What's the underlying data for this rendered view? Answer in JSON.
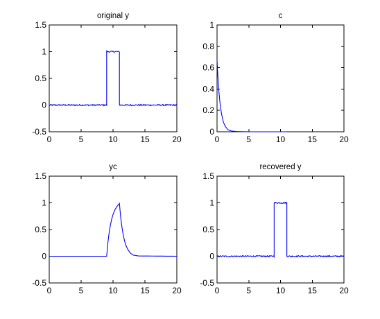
{
  "chart_data": [
    {
      "type": "line",
      "title": "original y",
      "xlabel": "",
      "ylabel": "",
      "xlim": [
        0,
        20
      ],
      "ylim": [
        -0.5,
        1.5
      ],
      "xticks": [
        0,
        5,
        10,
        15,
        20
      ],
      "yticks": [
        -0.5,
        0,
        0.5,
        1,
        1.5
      ],
      "xtick_labels": [
        "0",
        "5",
        "10",
        "15",
        "20"
      ],
      "ytick_labels": [
        "-0.5",
        "0",
        "0.5",
        "1",
        "1.5"
      ],
      "series_color": "#0000ff",
      "noise": 0.012,
      "x": [
        0,
        9.0,
        9.0,
        11.0,
        11.0,
        20
      ],
      "y": [
        0,
        0,
        1,
        1,
        0,
        0
      ]
    },
    {
      "type": "line",
      "title": "c",
      "xlabel": "",
      "ylabel": "",
      "xlim": [
        0,
        20
      ],
      "ylim": [
        0,
        1
      ],
      "xticks": [
        0,
        5,
        10,
        15,
        20
      ],
      "yticks": [
        0,
        0.2,
        0.4,
        0.6,
        0.8,
        1
      ],
      "xtick_labels": [
        "0",
        "5",
        "10",
        "15",
        "20"
      ],
      "ytick_labels": [
        "0",
        "0.2",
        "0.4",
        "0.6",
        "0.8",
        "1"
      ],
      "series_color": "#0000ff",
      "noise": 0,
      "x": [
        0,
        0.1,
        0.2,
        0.3,
        0.5,
        0.7,
        1.0,
        1.3,
        1.7,
        2.2,
        3.0,
        5.0,
        8.0,
        11.0
      ],
      "y": [
        0.67,
        0.55,
        0.45,
        0.37,
        0.25,
        0.17,
        0.09,
        0.05,
        0.02,
        0.008,
        0.002,
        0,
        0,
        0
      ]
    },
    {
      "type": "line",
      "title": "yc",
      "xlabel": "",
      "ylabel": "",
      "xlim": [
        0,
        20
      ],
      "ylim": [
        -0.5,
        1.5
      ],
      "xticks": [
        0,
        5,
        10,
        15,
        20
      ],
      "yticks": [
        -0.5,
        0,
        0.5,
        1,
        1.5
      ],
      "xtick_labels": [
        "0",
        "5",
        "10",
        "15",
        "20"
      ],
      "ytick_labels": [
        "-0.5",
        "0",
        "0.5",
        "1",
        "1.5"
      ],
      "series_color": "#0000ff",
      "noise": 0,
      "x": [
        0,
        9.0,
        9.2,
        9.4,
        9.6,
        9.8,
        10.0,
        10.3,
        10.6,
        11.0,
        11.2,
        11.4,
        11.6,
        11.8,
        12.0,
        12.3,
        12.7,
        13.2,
        14.0,
        20
      ],
      "y": [
        0,
        0,
        0.26,
        0.45,
        0.59,
        0.7,
        0.78,
        0.87,
        0.93,
        0.99,
        0.73,
        0.54,
        0.4,
        0.29,
        0.21,
        0.13,
        0.06,
        0.02,
        0.005,
        0
      ]
    },
    {
      "type": "line",
      "title": "recovered y",
      "xlabel": "",
      "ylabel": "",
      "xlim": [
        0,
        20
      ],
      "ylim": [
        -0.5,
        1.5
      ],
      "xticks": [
        0,
        5,
        10,
        15,
        20
      ],
      "yticks": [
        -0.5,
        0,
        0.5,
        1,
        1.5
      ],
      "xtick_labels": [
        "0",
        "5",
        "10",
        "15",
        "20"
      ],
      "ytick_labels": [
        "-0.5",
        "0",
        "0.5",
        "1",
        "1.5"
      ],
      "series_color": "#0000ff",
      "noise": 0.012,
      "x": [
        0,
        9.0,
        9.0,
        11.0,
        11.0,
        20
      ],
      "y": [
        0,
        0,
        1,
        1,
        0,
        0
      ]
    }
  ]
}
